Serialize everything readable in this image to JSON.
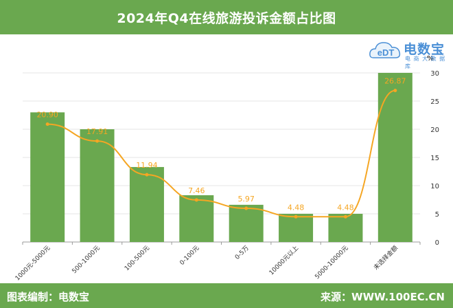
{
  "header": {
    "title": "2024年Q4在线旅游投诉金额占比图"
  },
  "footer": {
    "left_text": "图表编制：电数宝",
    "right_text": "来源：WWW.100EC.CN"
  },
  "logo": {
    "badge_text": "eDT",
    "brand": "电数宝",
    "tagline": "电 商 大 数 据 库",
    "unit_symbol": "%"
  },
  "colors": {
    "brand": "#6aa84f",
    "bar": "#6aa84f",
    "line": "#f5a623",
    "logo": "#4a8fd6"
  },
  "chart_data": {
    "type": "bar",
    "categories": [
      "1000元-5000元",
      "500-1000元",
      "100-500元",
      "0-100元",
      "0-5万",
      "10000元以上",
      "5000-10000元",
      "未选择金额"
    ],
    "values": [
      23.0,
      20.0,
      13.3,
      8.3,
      6.6,
      5.0,
      5.0,
      30.0
    ],
    "series": [
      {
        "type": "line",
        "values": [
          20.9,
          17.91,
          11.94,
          7.46,
          5.97,
          4.48,
          4.48,
          26.87
        ],
        "labels": [
          "20.90",
          "17.91",
          "11.94",
          "7.46",
          "5.97",
          "4.48",
          "4.48",
          "26.87"
        ]
      }
    ],
    "y_axis": {
      "min": 0,
      "max": 30,
      "ticks": [
        0,
        5,
        10,
        15,
        20,
        25,
        30
      ],
      "position": "right",
      "unit": "%"
    },
    "grid": true,
    "legend": "none"
  }
}
